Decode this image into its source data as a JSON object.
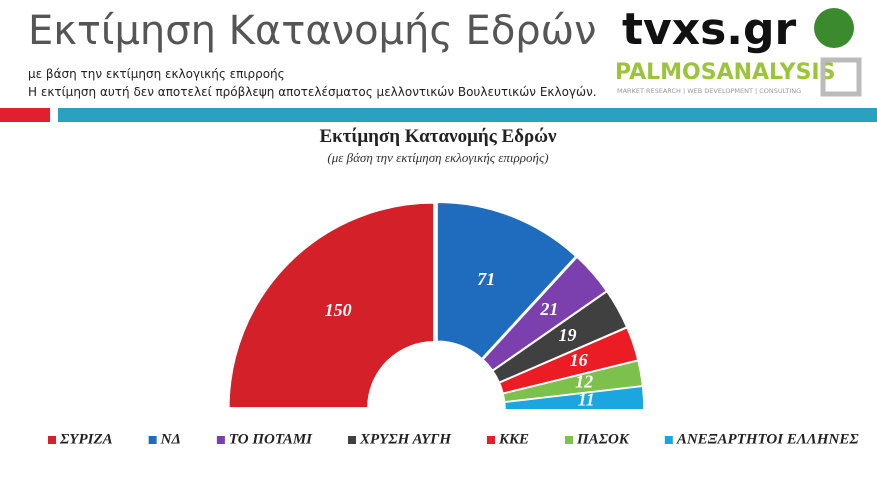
{
  "header": {
    "title": "Εκτίμηση Κατανομής Εδρών",
    "subtitle_1": "με βάση την εκτίμηση εκλογικής επιρροής",
    "subtitle_2": "Η εκτίμηση αυτή δεν αποτελεί πρόβλεψη αποτελέσματος μελλοντικών Βουλευτικών Εκλογών."
  },
  "logos": {
    "tvxs": "tvxs.gr",
    "palmos": "PALMOSANALYSIS",
    "palmos_tagline": "MARKET RESEARCH | WEB DEVELOPMENT | CONSULTING"
  },
  "chart_data": {
    "type": "donut",
    "semicircle": true,
    "title": "Εκτίμηση Κατανομής Εδρών",
    "subtitle": "(με βάση την εκτίμηση εκλογικής επιρροής)",
    "legend": "bottom",
    "categories": [
      "ΣΥΡΙΖΑ",
      "ΝΔ",
      "ΤΟ ΠΟΤΑΜΙ",
      "ΧΡΥΣΗ ΑΥΓΗ",
      "ΚΚΕ",
      "ΠΑΣΟΚ",
      "ΑΝΕΞΑΡΤΗΤΟΙ ΕΛΛΗΝΕΣ"
    ],
    "values": [
      150,
      71,
      21,
      19,
      16,
      12,
      11
    ],
    "colors": [
      "#d42129",
      "#1f6cbf",
      "#7b3fae",
      "#404040",
      "#ec1c24",
      "#7dc04b",
      "#1ba6e0"
    ]
  }
}
